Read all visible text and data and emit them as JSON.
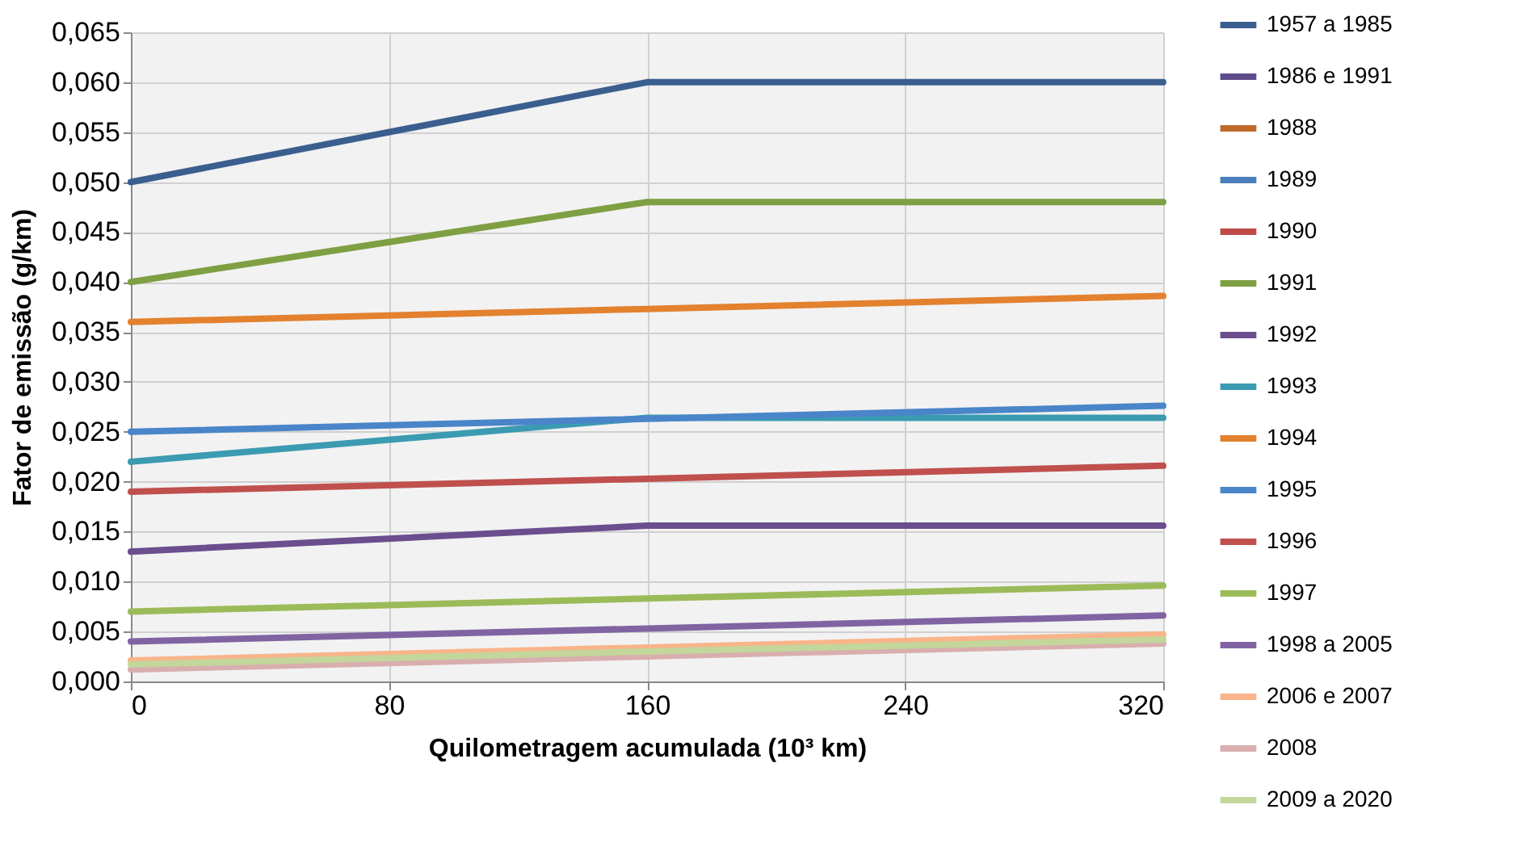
{
  "chart_data": {
    "type": "line",
    "xlabel": "Quilometragem acumulada (10³ km)",
    "ylabel": "Fator de emissão (g/km)",
    "x": [
      0,
      160,
      320
    ],
    "series": [
      {
        "name": "1957 a 1985",
        "color": "#3a5f8f",
        "values": [
          0.05,
          0.06,
          0.06
        ]
      },
      {
        "name": "1986 e 1991",
        "color": "#5f4b8b",
        "values": [
          null,
          null,
          null
        ]
      },
      {
        "name": "1988",
        "color": "#be6a2a",
        "values": [
          null,
          null,
          null
        ]
      },
      {
        "name": "1989",
        "color": "#4a7ebb",
        "values": [
          null,
          null,
          null
        ]
      },
      {
        "name": "1990",
        "color": "#be4b48",
        "values": [
          null,
          null,
          null
        ]
      },
      {
        "name": "1991",
        "color": "#7f9f43",
        "values": [
          0.04,
          0.048,
          0.048
        ]
      },
      {
        "name": "1992",
        "color": "#6b4e8e",
        "values": [
          0.013,
          0.0156,
          0.0156
        ]
      },
      {
        "name": "1993",
        "color": "#3b9bb1",
        "values": [
          0.022,
          0.0264,
          0.0264
        ]
      },
      {
        "name": "1994",
        "color": "#e3812f",
        "values": [
          0.036,
          0.0373,
          0.0386
        ]
      },
      {
        "name": "1995",
        "color": "#4a85c9",
        "values": [
          0.025,
          0.0263,
          0.0276
        ]
      },
      {
        "name": "1996",
        "color": "#c0504d",
        "values": [
          0.019,
          0.0203,
          0.0216
        ]
      },
      {
        "name": "1997",
        "color": "#9bbb59",
        "values": [
          0.007,
          0.0083,
          0.0096
        ]
      },
      {
        "name": "1998 a 2005",
        "color": "#8064a2",
        "values": [
          0.004,
          0.0053,
          0.0066
        ]
      },
      {
        "name": "2006 e 2007",
        "color": "#f9b48a",
        "values": [
          0.0021,
          0.0034,
          0.0047
        ]
      },
      {
        "name": "2008",
        "color": "#d9aeae",
        "values": [
          0.0012,
          0.0025,
          0.0038
        ]
      },
      {
        "name": "2009 a 2020",
        "color": "#c3d69b",
        "values": [
          0.0017,
          0.003,
          0.0042
        ]
      }
    ],
    "xlim": [
      0,
      320
    ],
    "xticks": [
      0,
      80,
      160,
      240,
      320
    ],
    "ylim": [
      0,
      0.065
    ],
    "yticks": [
      {
        "value": 0,
        "label": "0,000"
      },
      {
        "value": 0.005,
        "label": "0,005"
      },
      {
        "value": 0.01,
        "label": "0,010"
      },
      {
        "value": 0.015,
        "label": "0,015"
      },
      {
        "value": 0.02,
        "label": "0,020"
      },
      {
        "value": 0.025,
        "label": "0,025"
      },
      {
        "value": 0.03,
        "label": "0,030"
      },
      {
        "value": 0.035,
        "label": "0,035"
      },
      {
        "value": 0.04,
        "label": "0,040"
      },
      {
        "value": 0.045,
        "label": "0,045"
      },
      {
        "value": 0.05,
        "label": "0,050"
      },
      {
        "value": 0.055,
        "label": "0,055"
      },
      {
        "value": 0.06,
        "label": "0,060"
      },
      {
        "value": 0.065,
        "label": "0,065"
      }
    ],
    "grid": true,
    "legend": "right",
    "marker": "none",
    "line_style": "solid"
  }
}
